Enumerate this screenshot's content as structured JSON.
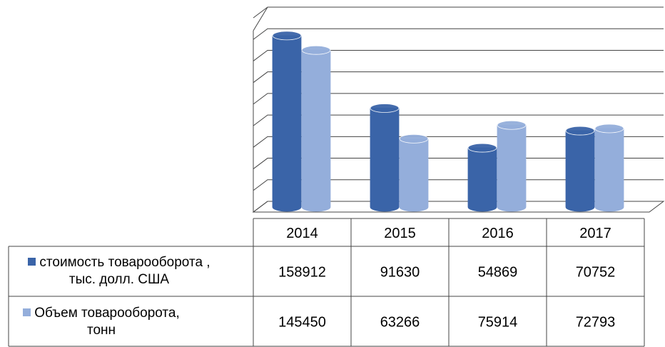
{
  "chart_data": {
    "type": "bar",
    "categories": [
      "2014",
      "2015",
      "2016",
      "2017"
    ],
    "series": [
      {
        "name": "стоимость товарооборота , тыс. долл. США",
        "color": "#3a64a8",
        "values": [
          158912,
          91630,
          54869,
          70752
        ]
      },
      {
        "name": "Объем товарооборота, тонн",
        "color": "#94aedb",
        "values": [
          145450,
          63266,
          75914,
          72793
        ]
      }
    ],
    "ylim": [
      0,
      180000
    ],
    "yticks": [
      0,
      20000,
      40000,
      60000,
      80000,
      100000,
      120000,
      140000,
      160000,
      180000
    ],
    "grid": true
  }
}
